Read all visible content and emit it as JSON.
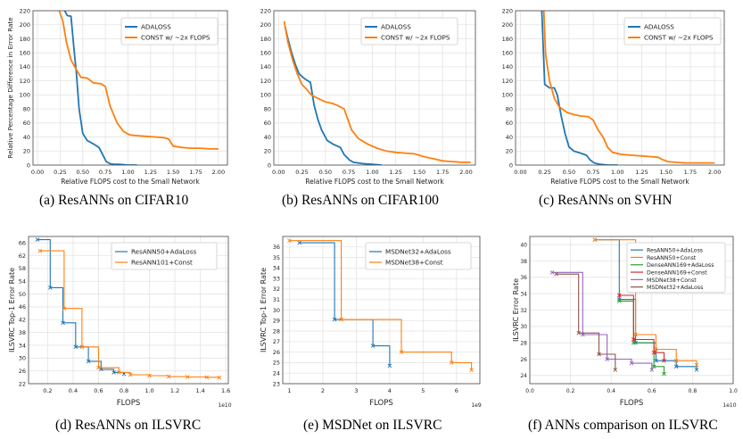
{
  "captions": [
    "(a) ResANNs on CIFAR10",
    "(b) ResANNs on CIFAR100",
    "(c) ResANNs on SVHN",
    "(d) ResANNs on ILSVRC",
    "(e) MSDNet on ILSVRC",
    "(f) ANNs comparison on ILSVRC"
  ],
  "colors": {
    "blue": "#1f77b4",
    "orange": "#ff7f0e",
    "green": "#2ca02c",
    "red": "#d62728",
    "purple": "#9467bd",
    "brown": "#8c564b"
  },
  "chart_data": [
    {
      "type": "line",
      "xlabel": "Relative FLOPS cost to the Small Network",
      "ylabel": "Relative Percentage Difference in Error Rate",
      "xlim": [
        -0.05,
        2.1
      ],
      "ylim": [
        0,
        220
      ],
      "xticks": [
        "0.00",
        "0.25",
        "0.50",
        "0.75",
        "1.00",
        "1.25",
        "1.50",
        "1.75",
        "2.00"
      ],
      "yticks": [
        "0",
        "20",
        "40",
        "60",
        "80",
        "100",
        "120",
        "140",
        "160",
        "180",
        "200",
        "220"
      ],
      "grid": true,
      "legend": "top-right",
      "series": [
        {
          "name": "ADALOSS",
          "color": "blue",
          "x": [
            0.3,
            0.33,
            0.37,
            0.4,
            0.43,
            0.46,
            0.5,
            0.55,
            0.62,
            0.68,
            0.72,
            0.76,
            0.8,
            0.85,
            0.9,
            1.0,
            1.1
          ],
          "y": [
            220,
            213,
            212,
            170,
            130,
            80,
            45,
            35,
            30,
            25,
            15,
            5,
            2,
            1,
            1,
            0,
            0
          ]
        },
        {
          "name": "CONST w/ ~2x FLOPS",
          "color": "orange",
          "x": [
            0.24,
            0.28,
            0.32,
            0.37,
            0.42,
            0.48,
            0.55,
            0.62,
            0.7,
            0.75,
            0.8,
            0.88,
            0.95,
            1.02,
            1.1,
            1.2,
            1.3,
            1.4,
            1.45,
            1.5,
            1.6,
            1.7,
            1.8,
            1.9,
            2.0
          ],
          "y": [
            220,
            205,
            175,
            150,
            138,
            125,
            124,
            117,
            116,
            112,
            85,
            60,
            48,
            43,
            42,
            41,
            40,
            39,
            37,
            27,
            25,
            24,
            24,
            23,
            23
          ]
        }
      ]
    },
    {
      "type": "line",
      "xlabel": "Relative FLOPS cost to the Small Network",
      "ylabel": "",
      "xlim": [
        -0.05,
        2.1
      ],
      "ylim": [
        0,
        220
      ],
      "xticks": [
        "0.00",
        "0.25",
        "0.50",
        "0.75",
        "1.00",
        "1.25",
        "1.50",
        "1.75",
        "2.00"
      ],
      "yticks": [
        "0",
        "20",
        "40",
        "60",
        "80",
        "100",
        "120",
        "140",
        "160",
        "180",
        "200",
        "220"
      ],
      "grid": true,
      "legend": "top-right",
      "series": [
        {
          "name": "ADALOSS",
          "color": "blue",
          "x": [
            0.07,
            0.1,
            0.14,
            0.18,
            0.22,
            0.26,
            0.3,
            0.34,
            0.38,
            0.42,
            0.46,
            0.52,
            0.58,
            0.66,
            0.7,
            0.76,
            0.8,
            0.85,
            0.9,
            1.0,
            1.1
          ],
          "y": [
            197,
            180,
            160,
            143,
            130,
            125,
            121,
            118,
            85,
            65,
            50,
            35,
            30,
            25,
            15,
            7,
            4,
            3,
            2,
            1,
            0
          ]
        },
        {
          "name": "CONST w/ ~2x FLOPS",
          "color": "orange",
          "x": [
            0.06,
            0.1,
            0.15,
            0.2,
            0.25,
            0.3,
            0.35,
            0.42,
            0.5,
            0.57,
            0.63,
            0.7,
            0.78,
            0.85,
            0.95,
            1.05,
            1.15,
            1.25,
            1.35,
            1.45,
            1.55,
            1.65,
            1.75,
            1.85,
            1.95,
            2.05
          ],
          "y": [
            205,
            175,
            150,
            130,
            115,
            108,
            100,
            95,
            90,
            88,
            85,
            80,
            50,
            38,
            30,
            24,
            20,
            18,
            17,
            16,
            12,
            9,
            6,
            5,
            4,
            4
          ]
        }
      ]
    },
    {
      "type": "line",
      "xlabel": "Relative FLOPS cost to the Small Network",
      "ylabel": "",
      "xlim": [
        -0.05,
        2.1
      ],
      "ylim": [
        0,
        220
      ],
      "xticks": [
        "0.00",
        "0.25",
        "0.50",
        "0.75",
        "1.00",
        "1.25",
        "1.50",
        "1.75",
        "2.00"
      ],
      "yticks": [
        "0",
        "20",
        "40",
        "60",
        "80",
        "100",
        "120",
        "140",
        "160",
        "180",
        "200",
        "220"
      ],
      "grid": true,
      "legend": "top-right",
      "series": [
        {
          "name": "ADALOSS",
          "color": "blue",
          "x": [
            0.22,
            0.25,
            0.3,
            0.35,
            0.38,
            0.42,
            0.46,
            0.5,
            0.55,
            0.62,
            0.68,
            0.72,
            0.76,
            0.82,
            0.9,
            1.0
          ],
          "y": [
            220,
            115,
            110,
            110,
            100,
            70,
            45,
            26,
            20,
            17,
            14,
            7,
            3,
            1,
            0,
            0
          ]
        },
        {
          "name": "CONST w/ ~2x FLOPS",
          "color": "orange",
          "x": [
            0.24,
            0.26,
            0.3,
            0.35,
            0.4,
            0.48,
            0.55,
            0.62,
            0.7,
            0.75,
            0.8,
            0.85,
            0.9,
            0.95,
            1.05,
            1.15,
            1.25,
            1.35,
            1.42,
            1.46,
            1.52,
            1.6,
            1.7,
            1.8,
            1.9,
            2.0
          ],
          "y": [
            220,
            158,
            120,
            95,
            83,
            75,
            72,
            70,
            69,
            64,
            50,
            40,
            25,
            18,
            15,
            14,
            13,
            12,
            11,
            8,
            5,
            4,
            3,
            3,
            3,
            3
          ]
        }
      ]
    },
    {
      "type": "line",
      "xlabel": "FLOPS",
      "ylabel": "ILSVRC Top-1 Error Rate",
      "xscale_label": "1e10",
      "xlim": [
        0.05,
        1.62
      ],
      "ylim": [
        22,
        68
      ],
      "xticks": [
        {
          "v": 0.2,
          "t": "0.2"
        },
        {
          "v": 0.4,
          "t": "0.4"
        },
        {
          "v": 0.6,
          "t": "0.6"
        },
        {
          "v": 0.8,
          "t": "0.8"
        },
        {
          "v": 1.0,
          "t": "1.0"
        },
        {
          "v": 1.2,
          "t": "1.2"
        },
        {
          "v": 1.4,
          "t": "1.4"
        },
        {
          "v": 1.6,
          "t": "1.6"
        }
      ],
      "yticks": [
        "22",
        "26",
        "30",
        "34",
        "38",
        "42",
        "46",
        "50",
        "54",
        "58",
        "62",
        "66"
      ],
      "grid": true,
      "legend": "top-right",
      "series": [
        {
          "name": "ResANN50+AdaLoss",
          "color": "blue",
          "steps": true,
          "x": [
            0.12,
            0.22,
            0.32,
            0.42,
            0.52,
            0.62,
            0.72,
            0.8
          ],
          "y": [
            67,
            52,
            41,
            33.5,
            29,
            26.5,
            25.5,
            25
          ]
        },
        {
          "name": "ResANN101+Const",
          "color": "orange",
          "steps": true,
          "x": [
            0.14,
            0.33,
            0.47,
            0.6,
            0.76,
            0.85,
            1.0,
            1.15,
            1.3,
            1.45,
            1.55
          ],
          "y": [
            63.5,
            45.5,
            33.5,
            27,
            25.5,
            24.8,
            24.5,
            24.2,
            24.1,
            24.0,
            23.9
          ]
        }
      ]
    },
    {
      "type": "line",
      "xlabel": "FLOPS",
      "ylabel": "ILSVRC Top-1 Error Rate",
      "xscale_label": "1e9",
      "xlim": [
        0.8,
        6.7
      ],
      "ylim": [
        23,
        37
      ],
      "xticks": [
        {
          "v": 1,
          "t": "1"
        },
        {
          "v": 2,
          "t": "2"
        },
        {
          "v": 3,
          "t": "3"
        },
        {
          "v": 4,
          "t": "4"
        },
        {
          "v": 5,
          "t": "5"
        },
        {
          "v": 6,
          "t": "6"
        }
      ],
      "yticks": [
        "23",
        "24",
        "25",
        "26",
        "27",
        "28",
        "29",
        "30",
        "31",
        "32",
        "33",
        "34",
        "35",
        "36"
      ],
      "grid": true,
      "legend": "top-right",
      "series": [
        {
          "name": "MSDNet32+AdaLoss",
          "color": "blue",
          "steps": true,
          "x": [
            1.3,
            2.35,
            3.5,
            4.0
          ],
          "y": [
            36.4,
            29.1,
            26.6,
            24.7
          ]
        },
        {
          "name": "MSDNet38+Const",
          "color": "orange",
          "steps": true,
          "x": [
            1.0,
            2.55,
            4.35,
            5.85,
            6.45
          ],
          "y": [
            36.6,
            29.1,
            26.0,
            25.0,
            24.3
          ]
        }
      ]
    },
    {
      "type": "line",
      "xlabel": "FLOPS",
      "ylabel": "ILSVRC Error Rate",
      "xscale_label": "1e10",
      "xlim": [
        0.0,
        1.0
      ],
      "ylim": [
        23,
        41
      ],
      "xticks": [
        {
          "v": 0.0,
          "t": "0.0"
        },
        {
          "v": 0.2,
          "t": "0.2"
        },
        {
          "v": 0.4,
          "t": "0.4"
        },
        {
          "v": 0.6,
          "t": "0.6"
        },
        {
          "v": 0.8,
          "t": "0.8"
        },
        {
          "v": 1.0,
          "t": "1.0"
        }
      ],
      "yticks": [
        "24",
        "26",
        "28",
        "30",
        "32",
        "34",
        "36",
        "38",
        "40"
      ],
      "grid": true,
      "legend": "top-right",
      "series": [
        {
          "name": "ResANN50+AdaLoss",
          "color": "blue",
          "steps": true,
          "x": [
            0.32,
            0.44,
            0.52,
            0.62,
            0.72,
            0.82
          ],
          "y": [
            40.6,
            33.3,
            28,
            25.8,
            25.1,
            24.7
          ]
        },
        {
          "name": "ResANN50+Const",
          "color": "orange",
          "steps": true,
          "x": [
            0.32,
            0.52,
            0.62,
            0.72,
            0.82
          ],
          "y": [
            40.6,
            29,
            27.2,
            25.8,
            25.3
          ]
        },
        {
          "name": "DenseANN169+AdaLoss",
          "color": "green",
          "steps": true,
          "x": [
            0.44,
            0.51,
            0.61,
            0.66
          ],
          "y": [
            33.1,
            28,
            25.1,
            24.2
          ]
        },
        {
          "name": "DenseANN169+Const",
          "color": "red",
          "steps": true,
          "x": [
            0.44,
            0.51,
            0.61,
            0.66
          ],
          "y": [
            33.8,
            28.4,
            26.8,
            25.8
          ]
        },
        {
          "name": "MSDNet38+Const",
          "color": "purple",
          "steps": true,
          "x": [
            0.11,
            0.26,
            0.38,
            0.5,
            0.6
          ],
          "y": [
            36.6,
            29,
            26,
            25.5,
            24.7
          ]
        },
        {
          "name": "MSDNet32+AdaLoss",
          "color": "brown",
          "steps": true,
          "x": [
            0.13,
            0.24,
            0.34,
            0.42
          ],
          "y": [
            36.4,
            29.2,
            26.6,
            24.7
          ]
        }
      ]
    }
  ]
}
